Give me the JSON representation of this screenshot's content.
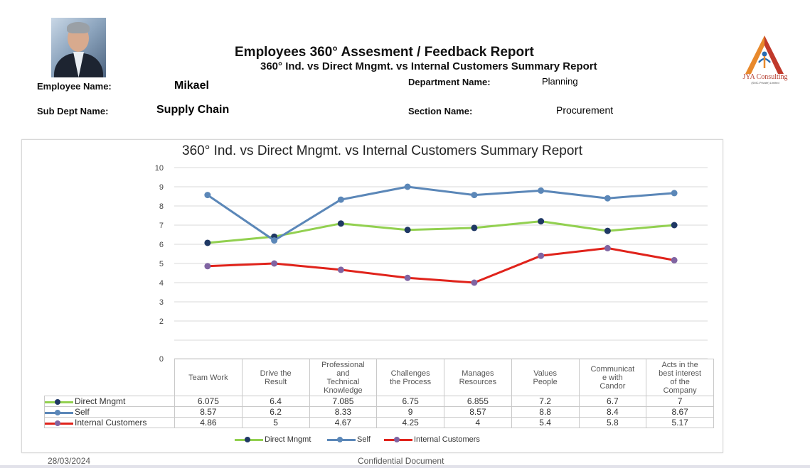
{
  "report": {
    "title": "Employees 360° Assesment / Feedback Report",
    "subtitle": "360° Ind. vs Direct Mngmt. vs Internal Customers Summary Report"
  },
  "employee": {
    "name_label": "Employee Name:",
    "name": "Mikael",
    "department_label": "Department Name:",
    "department": "Planning",
    "sub_dept_label": "Sub Dept Name:",
    "sub_dept": "Supply Chain",
    "section_label": "Section Name:",
    "section": "Procurement"
  },
  "logo": {
    "name": "JYA Consulting",
    "tagline": "(SMC-Private) Limited",
    "colors": [
      "#e8892c",
      "#c0392b",
      "#2b6cb0"
    ]
  },
  "footer": {
    "date": "28/03/2024",
    "confidential": "Confidential Document"
  },
  "chart_data": {
    "type": "line",
    "title": "360° Ind. vs Direct Mngmt. vs Internal Customers Summary Report",
    "categories": [
      "Team Work",
      "Drive the Result",
      "Professional and Technical Knowledge",
      "Challenges the Process",
      "Manages Resources",
      "Values People",
      "Communicate with Candor",
      "Acts in the best interest of the Company"
    ],
    "category_lines": [
      [
        "Team Work"
      ],
      [
        "Drive the",
        "Result"
      ],
      [
        "Professional",
        "and",
        "Technical",
        "Knowledge"
      ],
      [
        "Challenges",
        "the Process"
      ],
      [
        "Manages",
        "Resources"
      ],
      [
        "Values",
        "People"
      ],
      [
        "Communicat",
        "e with",
        "Candor"
      ],
      [
        "Acts in the",
        "best interest",
        "of the",
        "Company"
      ]
    ],
    "series": [
      {
        "name": "Direct Mngmt",
        "line_color": "#92d050",
        "marker_color": "#1f3864",
        "values": [
          6.075,
          6.4,
          7.085,
          6.75,
          6.855,
          7.2,
          6.7,
          7
        ],
        "labels": [
          "6.075",
          "6.4",
          "7.085",
          "6.75",
          "6.855",
          "7.2",
          "6.7",
          "7"
        ]
      },
      {
        "name": "Self",
        "line_color": "#5b87b8",
        "marker_color": "#5b87b8",
        "values": [
          8.57,
          6.2,
          8.33,
          9,
          8.57,
          8.8,
          8.4,
          8.67
        ],
        "labels": [
          "8.57",
          "6.2",
          "8.33",
          "9",
          "8.57",
          "8.8",
          "8.4",
          "8.67"
        ]
      },
      {
        "name": "Internal Customers",
        "line_color": "#e0231b",
        "marker_color": "#8064a2",
        "values": [
          4.86,
          5,
          4.67,
          4.25,
          4,
          5.4,
          5.8,
          5.17
        ],
        "labels": [
          "4.86",
          "5",
          "4.67",
          "4.25",
          "4",
          "5.4",
          "5.8",
          "5.17"
        ]
      }
    ],
    "yticks": [
      "0",
      "2",
      "3",
      "4",
      "5",
      "6",
      "7",
      "8",
      "9",
      "10"
    ],
    "ylim": [
      0,
      10
    ],
    "grid": true,
    "legend_position": "bottom"
  }
}
